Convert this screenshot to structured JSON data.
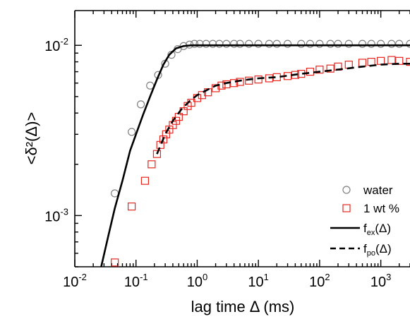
{
  "chart_data": {
    "type": "scatter",
    "xscale": "log",
    "yscale": "log",
    "xlim": [
      0.01,
      3000
    ],
    "ylim": [
      0.0005,
      0.016
    ],
    "xlabel": "lag time Δ (ms)",
    "ylabel": "<δ²(Δ)>",
    "x_tick_labels": [
      {
        "value": 0.01,
        "base": "10",
        "exp": "-2"
      },
      {
        "value": 0.1,
        "base": "10",
        "exp": "-1"
      },
      {
        "value": 1,
        "base": "10",
        "exp": "0"
      },
      {
        "value": 10,
        "base": "10",
        "exp": "1"
      },
      {
        "value": 100,
        "base": "10",
        "exp": "2"
      },
      {
        "value": 1000,
        "base": "10",
        "exp": "3"
      }
    ],
    "y_tick_labels": [
      {
        "value": 0.001,
        "base": "10",
        "exp": "-3"
      },
      {
        "value": 0.01,
        "base": "10",
        "exp": "-2"
      }
    ],
    "legend_position": "bottom-right",
    "series": [
      {
        "name": "water",
        "marker": "circle",
        "color": "#808080",
        "x": [
          0.045,
          0.085,
          0.12,
          0.17,
          0.23,
          0.3,
          0.38,
          0.48,
          0.6,
          0.75,
          0.9,
          1.1,
          1.4,
          1.8,
          2.3,
          3,
          4,
          5,
          7,
          10,
          15,
          20,
          30,
          50,
          70,
          100,
          150,
          200,
          300,
          500,
          700,
          1000,
          1500,
          2000,
          3000
        ],
        "y": [
          0.00135,
          0.0031,
          0.0045,
          0.0058,
          0.0067,
          0.0078,
          0.0088,
          0.0095,
          0.0099,
          0.0101,
          0.0102,
          0.0102,
          0.0102,
          0.0102,
          0.0102,
          0.0102,
          0.0102,
          0.0102,
          0.0102,
          0.0102,
          0.0102,
          0.0102,
          0.0102,
          0.0102,
          0.0102,
          0.0102,
          0.0102,
          0.0102,
          0.0102,
          0.0102,
          0.0102,
          0.0102,
          0.0102,
          0.0102,
          0.0102
        ]
      },
      {
        "name": "1 wt %",
        "marker": "square",
        "color": "#e8251f",
        "x": [
          0.045,
          0.085,
          0.14,
          0.18,
          0.22,
          0.25,
          0.28,
          0.31,
          0.35,
          0.4,
          0.45,
          0.5,
          0.6,
          0.7,
          0.8,
          1,
          1.2,
          1.5,
          2,
          2.5,
          3,
          4,
          5,
          7,
          10,
          15,
          20,
          30,
          40,
          50,
          70,
          100,
          150,
          200,
          300,
          500,
          700,
          1000,
          1500,
          2000,
          3000
        ],
        "y": [
          0.00053,
          0.00113,
          0.0016,
          0.002,
          0.0023,
          0.0026,
          0.0028,
          0.003,
          0.0032,
          0.0034,
          0.0036,
          0.0038,
          0.0041,
          0.0044,
          0.0046,
          0.0049,
          0.0051,
          0.0053,
          0.0056,
          0.0058,
          0.0059,
          0.006,
          0.0061,
          0.0062,
          0.0063,
          0.0064,
          0.0065,
          0.0066,
          0.0067,
          0.0068,
          0.007,
          0.0072,
          0.0073,
          0.0075,
          0.0077,
          0.0079,
          0.008,
          0.0081,
          0.0082,
          0.0081,
          0.008
        ]
      },
      {
        "name": "f_ex(Δ)",
        "label_main": "f",
        "label_sub": "ex",
        "label_tail": "(Δ)",
        "style": "solid",
        "color": "#000000",
        "x": [
          0.027,
          0.035,
          0.045,
          0.06,
          0.08,
          0.1,
          0.13,
          0.17,
          0.22,
          0.28,
          0.35,
          0.45,
          0.6,
          0.8,
          1,
          1.5,
          2,
          5,
          10,
          100,
          1000,
          3000
        ],
        "y": [
          0.0005,
          0.00075,
          0.0011,
          0.0016,
          0.0024,
          0.003,
          0.0039,
          0.005,
          0.0063,
          0.0077,
          0.0088,
          0.0096,
          0.0099,
          0.01,
          0.01,
          0.01,
          0.01,
          0.01,
          0.01,
          0.01,
          0.01,
          0.01
        ]
      },
      {
        "name": "f_po(Δ)",
        "label_main": "f",
        "label_sub": "po",
        "label_tail": "(Δ)",
        "style": "dashed",
        "color": "#000000",
        "x": [
          0.22,
          0.3,
          0.4,
          0.55,
          0.75,
          1,
          1.5,
          2,
          3,
          5,
          7,
          10,
          20,
          50,
          100,
          200,
          500,
          1000,
          2000,
          3000
        ],
        "y": [
          0.0023,
          0.003,
          0.0036,
          0.0042,
          0.0047,
          0.0051,
          0.0055,
          0.0058,
          0.006,
          0.0062,
          0.0063,
          0.0064,
          0.0065,
          0.0068,
          0.007,
          0.0072,
          0.0075,
          0.0077,
          0.0078,
          0.0078
        ]
      }
    ]
  }
}
